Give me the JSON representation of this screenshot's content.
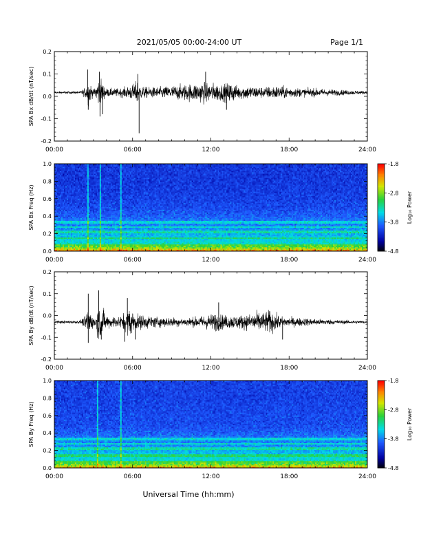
{
  "header": {
    "title": "2021/05/05  00:00-24:00 UT",
    "page": "Page 1/1"
  },
  "xlabel": "Universal Time (hh:mm)",
  "chart_data": [
    {
      "type": "line",
      "ylabel": "SPA Bx dB/dt (nT/sec)",
      "xlim": [
        0,
        24
      ],
      "ylim": [
        -0.2,
        0.2
      ],
      "x_ticks": [
        "00:00",
        "06:00",
        "12:00",
        "18:00",
        "24:00"
      ],
      "y_ticks": [
        "0.2",
        "0.1",
        "0.0",
        "-0.1",
        "-0.2"
      ],
      "series_color": "#000000",
      "baseline": 0.017,
      "envelope": {
        "hours": [
          0,
          2,
          2.5,
          2.6,
          3,
          3.3,
          3.5,
          3.8,
          4,
          5,
          5.5,
          6,
          6.4,
          6.6,
          7,
          8,
          9,
          10,
          11,
          11.5,
          12,
          13,
          13.5,
          14,
          15,
          16,
          17,
          18,
          19,
          20,
          21,
          22,
          23,
          24
        ],
        "amplitude": [
          0.008,
          0.01,
          0.05,
          0.1,
          0.02,
          0.08,
          0.12,
          0.05,
          0.03,
          0.03,
          0.04,
          0.06,
          0.09,
          0.05,
          0.04,
          0.04,
          0.05,
          0.06,
          0.07,
          0.08,
          0.07,
          0.06,
          0.08,
          0.05,
          0.05,
          0.04,
          0.05,
          0.04,
          0.03,
          0.03,
          0.025,
          0.02,
          0.015,
          0.01
        ]
      },
      "spikes": [
        {
          "x": 2.55,
          "y": 0.12
        },
        {
          "x": 2.6,
          "y": -0.06
        },
        {
          "x": 3.45,
          "y": 0.11
        },
        {
          "x": 3.5,
          "y": -0.09
        },
        {
          "x": 3.7,
          "y": -0.08
        },
        {
          "x": 6.4,
          "y": 0.1
        },
        {
          "x": 6.5,
          "y": -0.165
        },
        {
          "x": 11.6,
          "y": 0.11
        },
        {
          "x": 13.2,
          "y": -0.06
        }
      ]
    },
    {
      "type": "heatmap",
      "ylabel": "SPA Bx Freq (Hz)",
      "xlim": [
        0,
        24
      ],
      "ylim": [
        0,
        1.0
      ],
      "x_ticks": [
        "00:00",
        "06:00",
        "12:00",
        "18:00",
        "24:00"
      ],
      "y_ticks": [
        "1.0",
        "0.8",
        "0.6",
        "0.4",
        "0.2",
        "0.0"
      ],
      "colorbar": {
        "label": "Log₁₀ Power",
        "ticks": [
          "-1.8",
          "-2.8",
          "-3.8",
          "-4.8"
        ],
        "range": [
          -4.8,
          -1.8
        ]
      },
      "bright_lines_hours": [
        2.5,
        3.5,
        5.0
      ],
      "band_freqs_hz": [
        0.07,
        0.15,
        0.22,
        0.28,
        0.33
      ],
      "mean_log_power": {
        "freq_hz": [
          0.0,
          0.03,
          0.06,
          0.1,
          0.15,
          0.2,
          0.25,
          0.3,
          0.35,
          0.4,
          0.5,
          0.6,
          0.8,
          1.0
        ],
        "log_power": [
          -2.3,
          -2.9,
          -3.2,
          -3.4,
          -3.5,
          -3.6,
          -3.7,
          -3.75,
          -3.8,
          -3.9,
          -4.0,
          -4.05,
          -4.1,
          -4.1
        ]
      }
    },
    {
      "type": "line",
      "ylabel": "SPA By dB/dt (nT/sec)",
      "xlim": [
        0,
        24
      ],
      "ylim": [
        -0.2,
        0.2
      ],
      "x_ticks": [
        "00:00",
        "06:00",
        "12:00",
        "18:00",
        "24:00"
      ],
      "y_ticks": [
        "0.2",
        "0.1",
        "0.0",
        "-0.1",
        "-0.2"
      ],
      "series_color": "#000000",
      "baseline": -0.03,
      "envelope": {
        "hours": [
          0,
          2,
          2.4,
          2.6,
          3,
          3.3,
          3.5,
          4,
          5,
          5.5,
          5.8,
          6.2,
          7,
          8,
          9,
          10,
          11,
          11.5,
          12,
          12.5,
          13,
          14,
          15,
          15.5,
          16,
          16.5,
          17,
          17.5,
          18,
          19,
          20,
          21,
          22,
          23,
          24
        ],
        "amplitude": [
          0.01,
          0.012,
          0.05,
          0.12,
          0.03,
          0.1,
          0.14,
          0.05,
          0.04,
          0.08,
          0.11,
          0.06,
          0.05,
          0.04,
          0.035,
          0.03,
          0.04,
          0.05,
          0.06,
          0.07,
          0.05,
          0.05,
          0.06,
          0.08,
          0.07,
          0.09,
          0.06,
          0.04,
          0.035,
          0.03,
          0.025,
          0.02,
          0.015,
          0.012,
          0.01
        ]
      },
      "spikes": [
        {
          "x": 2.6,
          "y": 0.1
        },
        {
          "x": 2.6,
          "y": -0.125
        },
        {
          "x": 3.4,
          "y": 0.115
        },
        {
          "x": 3.6,
          "y": -0.11
        },
        {
          "x": 5.4,
          "y": -0.12
        },
        {
          "x": 5.6,
          "y": 0.08
        },
        {
          "x": 6.2,
          "y": -0.11
        },
        {
          "x": 12.6,
          "y": 0.06
        },
        {
          "x": 17.5,
          "y": -0.11
        }
      ]
    },
    {
      "type": "heatmap",
      "ylabel": "SPA By Freq (Hz)",
      "xlim": [
        0,
        24
      ],
      "ylim": [
        0,
        1.0
      ],
      "x_ticks": [
        "00:00",
        "06:00",
        "12:00",
        "18:00",
        "24:00"
      ],
      "y_ticks": [
        "1.0",
        "0.8",
        "0.6",
        "0.4",
        "0.2",
        "0.0"
      ],
      "colorbar": {
        "label": "Log₁₀ Power",
        "ticks": [
          "-1.8",
          "-2.8",
          "-3.8",
          "-4.8"
        ],
        "range": [
          -4.8,
          -1.8
        ]
      },
      "bright_lines_hours": [
        3.3,
        5.0
      ],
      "band_freqs_hz": [
        0.07,
        0.14,
        0.22,
        0.28,
        0.33
      ],
      "mean_log_power": {
        "freq_hz": [
          0.0,
          0.03,
          0.06,
          0.1,
          0.15,
          0.2,
          0.25,
          0.3,
          0.35,
          0.4,
          0.5,
          0.6,
          0.8,
          1.0
        ],
        "log_power": [
          -2.4,
          -3.0,
          -3.2,
          -3.4,
          -3.5,
          -3.6,
          -3.7,
          -3.75,
          -3.8,
          -3.9,
          -4.0,
          -4.0,
          -4.05,
          -4.05
        ]
      }
    }
  ]
}
